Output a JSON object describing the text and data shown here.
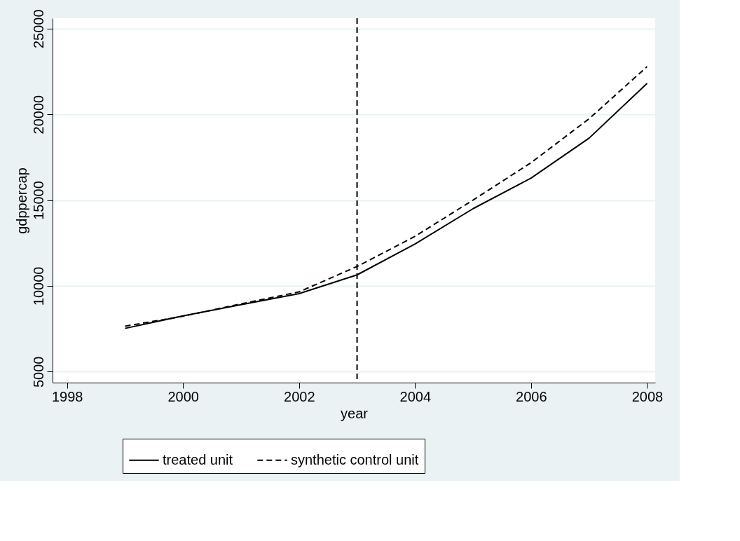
{
  "chart_data": {
    "type": "line",
    "xlabel": "year",
    "ylabel": "gdppercap",
    "x": [
      1999,
      2000,
      2001,
      2002,
      2003,
      2004,
      2005,
      2006,
      2007,
      2008
    ],
    "series": [
      {
        "name": "treated unit",
        "color": "#000000",
        "line_style": "solid",
        "values": [
          7520,
          8250,
          8900,
          9550,
          10640,
          12440,
          14500,
          16280,
          18610,
          21800
        ]
      },
      {
        "name": "synthetic control unit",
        "color": "#000000",
        "line_style": "dashed",
        "values": [
          7650,
          8230,
          8950,
          9650,
          11130,
          12890,
          15000,
          17180,
          19740,
          22780
        ]
      }
    ],
    "xlim": [
      1997.75,
      2008.14
    ],
    "xticks": [
      1998,
      2000,
      2002,
      2004,
      2006,
      2008
    ],
    "ylim": [
      4360,
      25600
    ],
    "yticks": [
      5000,
      10000,
      15000,
      20000,
      25000
    ],
    "grid": "y",
    "legend": "bottom",
    "marker": "none",
    "ref_lines": [
      {
        "axis": "x",
        "value": 2003,
        "color": "#000000",
        "line_style": "dashed"
      }
    ]
  }
}
